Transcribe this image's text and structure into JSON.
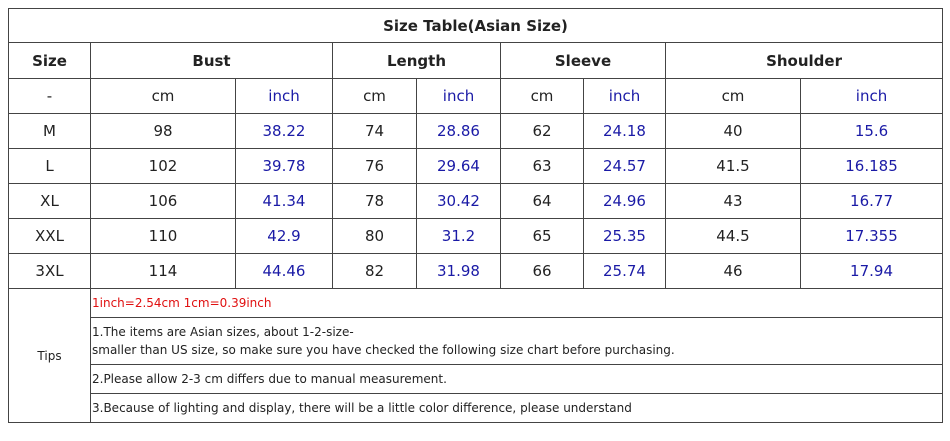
{
  "table": {
    "title": "Size Table(Asian Size)",
    "headers": [
      "Size",
      "Bust",
      "Length",
      "Sleeve",
      "Shoulder"
    ],
    "units": [
      "-",
      "cm",
      "inch",
      "cm",
      "inch",
      "cm",
      "inch",
      "cm",
      "inch"
    ],
    "rows": [
      [
        "M",
        98,
        38.22,
        74,
        28.86,
        62,
        24.18,
        40,
        15.6
      ],
      [
        "L",
        102,
        39.78,
        76,
        29.64,
        63,
        24.57,
        41.5,
        16.185
      ],
      [
        "XL",
        106,
        41.34,
        78,
        30.42,
        64,
        24.96,
        43,
        16.77
      ],
      [
        "XXL",
        110,
        42.9,
        80,
        31.2,
        65,
        25.35,
        44.5,
        17.355
      ],
      [
        "3XL",
        114,
        44.46,
        82,
        31.98,
        66,
        25.74,
        46,
        17.94
      ]
    ]
  },
  "tips": {
    "label": "Tips",
    "note": "1inch=2.54cm 1cm=0.39inch",
    "items": [
      [
        "1.The items are Asian sizes, about 1-2-size-",
        "smaller than US size, so make sure you have checked the following size chart before purchasing."
      ],
      [
        "2.Please allow 2-3 cm differs due to manual measurement."
      ],
      [
        "3.Because of lighting and display, there will be a little color difference, please understand"
      ]
    ]
  }
}
